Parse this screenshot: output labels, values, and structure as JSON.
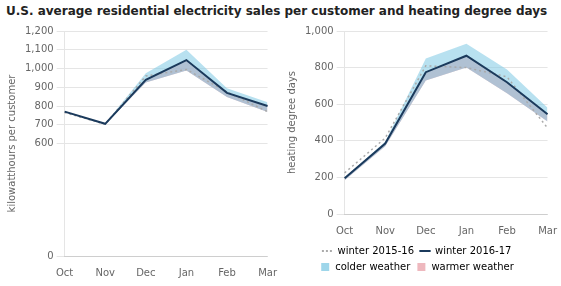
{
  "title": "U.S. average residential electricity sales per customer and heating degree days",
  "chart_data": [
    {
      "type": "line",
      "ylabel": "kilowatthours per customer",
      "categories": [
        "Oct",
        "Nov",
        "Dec",
        "Jan",
        "Feb",
        "Mar"
      ],
      "series": [
        {
          "name": "winter 2015-16",
          "color": "#aaaaaa",
          "line_style": "dotted",
          "values": [
            765,
            703,
            960,
            995,
            875,
            770
          ]
        },
        {
          "name": "winter 2016-17",
          "color": "#1b3a5c",
          "values": [
            770,
            705,
            940,
            1045,
            870,
            800
          ]
        },
        {
          "name": "colder weather",
          "color": "#7ec8e3",
          "type": "area",
          "values": [
            772,
            707,
            975,
            1100,
            895,
            820
          ]
        },
        {
          "name": "warmer weather",
          "color": "#e8a0a8",
          "type": "area",
          "values": [
            768,
            703,
            925,
            990,
            848,
            768
          ]
        }
      ],
      "ylim": [
        0,
        1200
      ],
      "yticks": [
        0,
        600,
        700,
        800,
        900,
        {
          "value": 1000,
          "label": "1,000"
        },
        {
          "value": 1100,
          "label": "1,100"
        },
        {
          "value": 1200,
          "label": "1,200"
        }
      ],
      "grid": true
    },
    {
      "type": "line",
      "ylabel": "heating degree days",
      "categories": [
        "Oct",
        "Nov",
        "Dec",
        "Jan",
        "Feb",
        "Mar"
      ],
      "series": [
        {
          "name": "winter 2015-16",
          "color": "#aaaaaa",
          "line_style": "dotted",
          "values": [
            225,
            415,
            810,
            800,
            750,
            470
          ]
        },
        {
          "name": "winter 2016-17",
          "color": "#1b3a5c",
          "values": [
            195,
            385,
            775,
            865,
            720,
            545
          ]
        },
        {
          "name": "colder weather",
          "color": "#7ec8e3",
          "type": "area",
          "values": [
            200,
            395,
            850,
            930,
            790,
            580
          ]
        },
        {
          "name": "warmer weather",
          "color": "#e8a0a8",
          "type": "area",
          "values": [
            185,
            370,
            730,
            800,
            660,
            505
          ]
        }
      ],
      "ylim": [
        0,
        1000
      ],
      "yticks": [
        0,
        200,
        400,
        600,
        800,
        {
          "value": 1000,
          "label": "1,000"
        }
      ],
      "grid": true,
      "legend": "bottom"
    }
  ]
}
